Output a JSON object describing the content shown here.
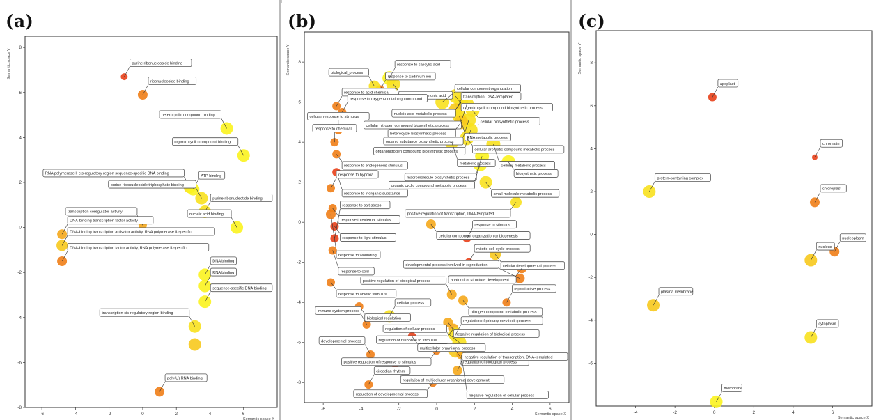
{
  "colors": {
    "bubble_scale": [
      "#e8401a",
      "#f07e17",
      "#f5a81c",
      "#f7c91d",
      "#f8e11f",
      "#fbf31f"
    ],
    "frame": "#333333",
    "divider": "#bdbdbd"
  },
  "chart_data": [
    {
      "panel": "(a)",
      "type": "scatter",
      "title": "",
      "xlabel": "Semantic space X",
      "ylabel": "Semantic space Y",
      "xlim": [
        -7,
        8
      ],
      "ylim": [
        -8,
        8.5
      ],
      "xticks": [
        -6,
        -4,
        -2,
        0,
        2,
        4,
        6
      ],
      "yticks": [
        -8,
        -6,
        -4,
        -2,
        0,
        2,
        4,
        6,
        8
      ],
      "points": [
        {
          "label": "purine ribonucleoside binding",
          "x": -1.1,
          "y": 6.7,
          "size": 5,
          "color": 0
        },
        {
          "label": "ribonucleoside binding",
          "x": 0.0,
          "y": 5.9,
          "size": 7,
          "color": 1
        },
        {
          "label": "heterocyclic compound binding",
          "x": 5.0,
          "y": 4.4,
          "size": 9,
          "color": 5
        },
        {
          "label": "organic cyclic compound binding",
          "x": 6.0,
          "y": 3.2,
          "size": 9,
          "color": 5
        },
        {
          "label": "RNA polymerase II cis-regulatory region sequence-specific DNA binding",
          "x": 2.8,
          "y": 1.8,
          "size": 9,
          "color": 4
        },
        {
          "label": "ATP binding",
          "x": 3.0,
          "y": 1.7,
          "size": 9,
          "color": 5
        },
        {
          "label": "purine ribonucleoside triphosphate binding",
          "x": 3.5,
          "y": 1.3,
          "size": 9,
          "color": 4
        },
        {
          "label": "purine ribonucleotide binding",
          "x": 3.7,
          "y": 0.7,
          "size": 9,
          "color": 4
        },
        {
          "label": "nucleic acid binding",
          "x": 5.6,
          "y": 0.0,
          "size": 9,
          "color": 5
        },
        {
          "label": "transcription coregulator activity",
          "x": 0.0,
          "y": 0.1,
          "size": 6,
          "color": 2
        },
        {
          "label": "DNA-binding transcription factor activity",
          "x": -4.8,
          "y": -0.3,
          "size": 7,
          "color": 2
        },
        {
          "label": "DNA-binding transcription activator activity, RNA polymerase II-specific",
          "x": -4.8,
          "y": -0.8,
          "size": 8,
          "color": 3
        },
        {
          "label": "DNA-binding transcription factor activity, RNA polymerase II-specific",
          "x": -4.8,
          "y": -1.5,
          "size": 7,
          "color": 1
        },
        {
          "label": "DNA binding",
          "x": 3.7,
          "y": -2.1,
          "size": 9,
          "color": 5
        },
        {
          "label": "RNA binding",
          "x": 3.7,
          "y": -2.6,
          "size": 9,
          "color": 5
        },
        {
          "label": "sequence-specific DNA binding",
          "x": 3.7,
          "y": -3.3,
          "size": 9,
          "color": 5
        },
        {
          "label": "transcription cis-regulatory region binding",
          "x": 3.1,
          "y": -4.4,
          "size": 9,
          "color": 4
        },
        {
          "label": "",
          "x": 3.1,
          "y": -5.2,
          "size": 9,
          "color": 3
        },
        {
          "label": "poly(U) RNA binding",
          "x": 1.0,
          "y": -7.3,
          "size": 7,
          "color": 1
        }
      ]
    },
    {
      "panel": "(b)",
      "type": "scatter",
      "title": "",
      "xlabel": "Semantic space X",
      "ylabel": "Semantic space Y",
      "xlim": [
        -7,
        7
      ],
      "ylim": [
        -9,
        9.5
      ],
      "xticks": [
        -6,
        -4,
        -2,
        0,
        2,
        4,
        6
      ],
      "yticks": [
        -8,
        -6,
        -4,
        -2,
        0,
        2,
        4,
        6,
        8
      ],
      "points": [
        {
          "label": "response to cadmium ion",
          "x": -3.0,
          "y": 6.6,
          "size": 7,
          "color": 1
        },
        {
          "label": "response to salicylic acid",
          "x": -2.5,
          "y": 7.2,
          "size": 10,
          "color": 5
        },
        {
          "label": "biological_process",
          "x": -3.3,
          "y": 6.8,
          "size": 8,
          "color": 4
        },
        {
          "label": "response to jasmonic acid",
          "x": -2.3,
          "y": 6.9,
          "size": 10,
          "color": 4
        },
        {
          "label": "cellular component organization",
          "x": 0.3,
          "y": 6.0,
          "size": 10,
          "color": 4
        },
        {
          "label": "organic cyclic compound biosynthetic process",
          "x": 1.0,
          "y": 6.3,
          "size": 10,
          "color": 4
        },
        {
          "label": "nucleic acid metabolic process",
          "x": 1.3,
          "y": 6.0,
          "size": 10,
          "color": 4
        },
        {
          "label": "cellular nitrogen compound biosynthetic process",
          "x": 1.6,
          "y": 5.9,
          "size": 10,
          "color": 4
        },
        {
          "label": "transcription, DNA-templated",
          "x": 1.0,
          "y": 5.6,
          "size": 10,
          "color": 3
        },
        {
          "label": "cellular biosynthetic process",
          "x": 1.9,
          "y": 5.6,
          "size": 10,
          "color": 4
        },
        {
          "label": "RNA metabolic process",
          "x": 1.2,
          "y": 5.3,
          "size": 10,
          "color": 4
        },
        {
          "label": "organic substance biosynthetic process",
          "x": 1.7,
          "y": 5.1,
          "size": 10,
          "color": 4
        },
        {
          "label": "heterocycle biosynthetic process",
          "x": 1.3,
          "y": 5.0,
          "size": 10,
          "color": 3
        },
        {
          "label": "organonitrogen compound biosynthetic process",
          "x": 1.8,
          "y": 4.6,
          "size": 10,
          "color": 4
        },
        {
          "label": "cellular aromatic compound metabolic process",
          "x": 1.6,
          "y": 4.2,
          "size": 10,
          "color": 4
        },
        {
          "label": "response to acid chemical",
          "x": -5.3,
          "y": 5.8,
          "size": 6,
          "color": 1
        },
        {
          "label": "response to oxygen-containing compound",
          "x": -5.0,
          "y": 5.5,
          "size": 6,
          "color": 1
        },
        {
          "label": "cellular response to stimulus",
          "x": -5.2,
          "y": 4.6,
          "size": 6,
          "color": 1
        },
        {
          "label": "metabolic process",
          "x": 0.8,
          "y": 4.0,
          "size": 10,
          "color": 4
        },
        {
          "label": "cellular metabolic process",
          "x": 3.0,
          "y": 3.9,
          "size": 10,
          "color": 4
        },
        {
          "label": "biosynthetic process",
          "x": 3.8,
          "y": 3.0,
          "size": 10,
          "color": 5
        },
        {
          "label": "response to chemical",
          "x": -5.4,
          "y": 4.0,
          "size": 6,
          "color": 1
        },
        {
          "label": "response to endogenous stimulus",
          "x": -5.3,
          "y": 3.4,
          "size": 6,
          "color": 1
        },
        {
          "label": "macromolecule biosynthetic process",
          "x": 2.4,
          "y": 3.3,
          "size": 10,
          "color": 5
        },
        {
          "label": "organic cyclic compound metabolic process",
          "x": 2.3,
          "y": 2.9,
          "size": 10,
          "color": 5
        },
        {
          "label": "small molecule metabolic process",
          "x": 2.6,
          "y": 2.0,
          "size": 9,
          "color": 4
        },
        {
          "label": "response to inorganic substance",
          "x": -5.3,
          "y": 2.5,
          "size": 6,
          "color": 0
        },
        {
          "label": "response to hypoxia",
          "x": -5.6,
          "y": 1.7,
          "size": 6,
          "color": 1
        },
        {
          "label": "positive regulation of transcription, DNA-templated",
          "x": 4.2,
          "y": 1.0,
          "size": 8,
          "color": 4
        },
        {
          "label": "response to external stimulus",
          "x": -5.5,
          "y": 0.7,
          "size": 6,
          "color": 1
        },
        {
          "label": "cellular component organization or biogenesis",
          "x": -0.3,
          "y": -0.1,
          "size": 7,
          "color": 2
        },
        {
          "label": "response to light stimulus",
          "x": -5.4,
          "y": -0.2,
          "size": 6,
          "color": 0
        },
        {
          "label": "response to wounding",
          "x": -5.6,
          "y": 0.4,
          "size": 7,
          "color": 1
        },
        {
          "label": "response to salt stress",
          "x": -5.4,
          "y": -0.8,
          "size": 6,
          "color": 0
        },
        {
          "label": "response to stimulus",
          "x": 1.6,
          "y": -0.8,
          "size": 6,
          "color": 0
        },
        {
          "label": "cellular developmental process",
          "x": 3.1,
          "y": -1.6,
          "size": 8,
          "color": 3
        },
        {
          "label": "response to cold",
          "x": -5.5,
          "y": -1.4,
          "size": 6,
          "color": 1
        },
        {
          "label": "mitotic cell cycle process",
          "x": 1.7,
          "y": -2.0,
          "size": 6,
          "color": 0
        },
        {
          "label": "anatomical structure development",
          "x": 4.5,
          "y": -2.3,
          "size": 7,
          "color": 1
        },
        {
          "label": "developmental process involved in reproduction",
          "x": 4.4,
          "y": -2.8,
          "size": 7,
          "color": 1
        },
        {
          "label": "response to abiotic stimulus",
          "x": -5.6,
          "y": -3.0,
          "size": 6,
          "color": 1
        },
        {
          "label": "positive regulation of biological process",
          "x": 0.8,
          "y": -3.6,
          "size": 7,
          "color": 2
        },
        {
          "label": "nitrogen compound metabolic process",
          "x": 1.4,
          "y": -3.9,
          "size": 7,
          "color": 2
        },
        {
          "label": "reproductive process",
          "x": 3.7,
          "y": -4.0,
          "size": 6,
          "color": 1
        },
        {
          "label": "biological regulation",
          "x": -4.1,
          "y": -4.2,
          "size": 6,
          "color": 1
        },
        {
          "label": "cellular process",
          "x": -2.5,
          "y": -4.7,
          "size": 9,
          "color": 4
        },
        {
          "label": "immune system process",
          "x": -3.7,
          "y": -5.1,
          "size": 6,
          "color": 1
        },
        {
          "label": "negative regulation of biological process",
          "x": 0.6,
          "y": -5.0,
          "size": 7,
          "color": 2
        },
        {
          "label": "regulation of response to stimulus",
          "x": 0.9,
          "y": -5.3,
          "size": 7,
          "color": 2
        },
        {
          "label": "regulation of primary metabolic process",
          "x": 1.0,
          "y": -5.6,
          "size": 10,
          "color": 4
        },
        {
          "label": "multicellular organismal process",
          "x": -1.3,
          "y": -5.7,
          "size": 6,
          "color": 0
        },
        {
          "label": "regulation of cellular process",
          "x": 1.2,
          "y": -6.0,
          "size": 10,
          "color": 4
        },
        {
          "label": "regulation of biological process",
          "x": 1.0,
          "y": -6.4,
          "size": 10,
          "color": 3
        },
        {
          "label": "developmental process",
          "x": -3.5,
          "y": -6.6,
          "size": 6,
          "color": 1
        },
        {
          "label": "regulation of multicellular organismal development",
          "x": -2.2,
          "y": -7.3,
          "size": 5,
          "color": 0
        },
        {
          "label": "positive regulation of response to stimulus",
          "x": 0.0,
          "y": -6.4,
          "size": 6,
          "color": 1
        },
        {
          "label": "negative regulation of cellular process",
          "x": 1.3,
          "y": -6.6,
          "size": 7,
          "color": 2
        },
        {
          "label": "circadian rhythm",
          "x": -3.6,
          "y": -8.1,
          "size": 6,
          "color": 1
        },
        {
          "label": "regulation of developmental process",
          "x": -0.2,
          "y": -8.0,
          "size": 6,
          "color": 1
        },
        {
          "label": "negative regulation of transcription, DNA-templated",
          "x": 1.1,
          "y": -7.4,
          "size": 7,
          "color": 2
        }
      ]
    },
    {
      "panel": "(c)",
      "type": "scatter",
      "title": "",
      "xlabel": "Semantic space X",
      "ylabel": "Semantic space Y",
      "xlim": [
        -6,
        8
      ],
      "ylim": [
        -8,
        9.5
      ],
      "xticks": [
        -4,
        -2,
        0,
        2,
        4,
        6
      ],
      "yticks": [
        -6,
        -4,
        -2,
        0,
        2,
        4,
        6,
        8
      ],
      "points": [
        {
          "label": "apoplast",
          "x": -0.1,
          "y": 6.4,
          "size": 6,
          "color": 0
        },
        {
          "label": "chromatin",
          "x": 5.1,
          "y": 3.6,
          "size": 4,
          "color": 0
        },
        {
          "label": "protein-containing complex",
          "x": -3.3,
          "y": 2.0,
          "size": 9,
          "color": 4
        },
        {
          "label": "chloroplast",
          "x": 5.1,
          "y": 1.5,
          "size": 7,
          "color": 1
        },
        {
          "label": "nucleoplasm",
          "x": 6.1,
          "y": -0.8,
          "size": 7,
          "color": 1
        },
        {
          "label": "nucleus",
          "x": 4.9,
          "y": -1.2,
          "size": 9,
          "color": 3
        },
        {
          "label": "plasma membrane",
          "x": -3.1,
          "y": -3.3,
          "size": 9,
          "color": 3
        },
        {
          "label": "cytoplasm",
          "x": 4.9,
          "y": -4.8,
          "size": 9,
          "color": 4
        },
        {
          "label": "membrane",
          "x": 0.1,
          "y": -7.8,
          "size": 9,
          "color": 5
        }
      ]
    }
  ]
}
